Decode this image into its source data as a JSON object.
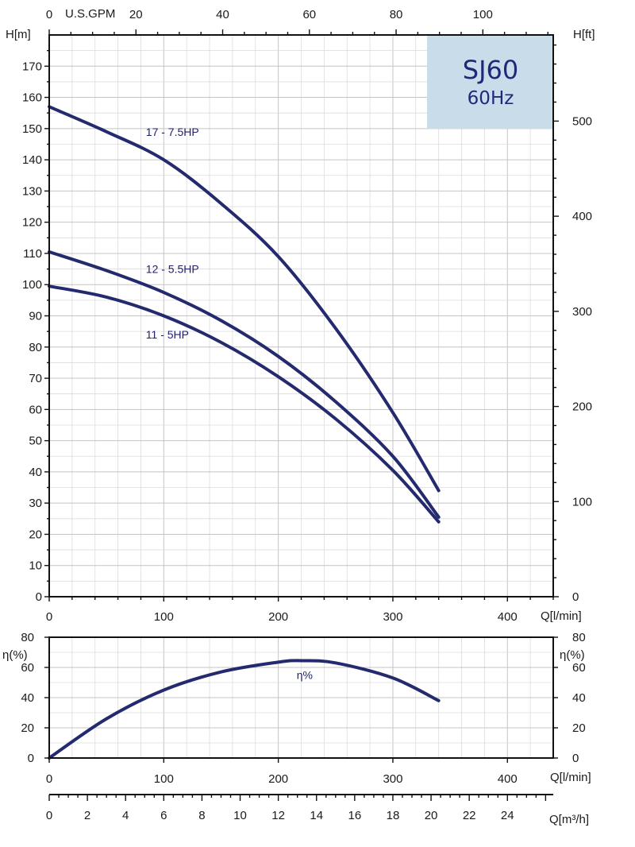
{
  "chart_data": [
    {
      "id": "head",
      "type": "line",
      "title": "SJ60 60Hz",
      "badge": {
        "model": "SJ60",
        "frequency": "60Hz",
        "color": "#c9dcea"
      },
      "curve_color": "#242a6e",
      "xlabel": "Q[l/min]",
      "ylabel_left": "H[m]",
      "ylabel_right": "H[ft]",
      "xlabel_top": "U.S.GPM",
      "xlim": [
        0,
        440
      ],
      "ylim": [
        0,
        180
      ],
      "x_ticks": [
        "0",
        "100",
        "200",
        "300",
        "400"
      ],
      "x_tick_values": [
        0,
        100,
        200,
        300,
        400
      ],
      "y_ticks": [
        "0",
        "10",
        "20",
        "30",
        "40",
        "50",
        "60",
        "70",
        "80",
        "90",
        "100",
        "110",
        "120",
        "130",
        "140",
        "150",
        "160",
        "170"
      ],
      "y_tick_values": [
        0,
        10,
        20,
        30,
        40,
        50,
        60,
        70,
        80,
        90,
        100,
        110,
        120,
        130,
        140,
        150,
        160,
        170
      ],
      "ft_ticks": [
        "0",
        "100",
        "200",
        "300",
        "400",
        "500"
      ],
      "ft_tick_values": [
        0,
        100,
        200,
        300,
        400,
        500
      ],
      "gpm_ticks": [
        "0",
        "20",
        "40",
        "60",
        "80",
        "100"
      ],
      "gpm_tick_values": [
        0,
        20,
        40,
        60,
        80,
        100
      ],
      "series": [
        {
          "name": "17 - 7.5HP",
          "label_at": [
            65,
            149
          ],
          "x": [
            0,
            50,
            100,
            150,
            200,
            250,
            300,
            340
          ],
          "y": [
            157,
            149,
            140,
            126,
            109,
            86,
            59,
            34
          ]
        },
        {
          "name": "12 - 5.5HP",
          "label_at": [
            65,
            105
          ],
          "x": [
            0,
            50,
            100,
            150,
            200,
            250,
            300,
            340
          ],
          "y": [
            110.5,
            104.5,
            97.5,
            88.5,
            77,
            62.5,
            45,
            25.5
          ]
        },
        {
          "name": "11 - 5HP",
          "label_at": [
            65,
            84
          ],
          "x": [
            0,
            50,
            100,
            150,
            200,
            250,
            300,
            340
          ],
          "y": [
            99.5,
            96,
            90,
            81.5,
            70.5,
            57,
            40.5,
            24
          ]
        }
      ]
    },
    {
      "id": "efficiency",
      "type": "line",
      "xlabel": "Q[l/min]",
      "ylabel": "η(%)",
      "ylabel_right": "η(%)",
      "xlim": [
        0,
        440
      ],
      "ylim": [
        0,
        80
      ],
      "x_ticks": [
        "0",
        "100",
        "200",
        "300",
        "400"
      ],
      "x_tick_values": [
        0,
        100,
        200,
        300,
        400
      ],
      "y_ticks": [
        "0",
        "20",
        "40",
        "60",
        "80"
      ],
      "y_tick_values": [
        0,
        20,
        40,
        60,
        80
      ],
      "series": [
        {
          "name": "η%",
          "label_at": [
            216,
            55
          ],
          "x": [
            0,
            50,
            100,
            150,
            200,
            220,
            250,
            300,
            340
          ],
          "y": [
            0,
            26,
            45,
            57,
            63.5,
            64.5,
            63,
            53,
            38
          ]
        }
      ]
    },
    {
      "id": "flow-m3h",
      "type": "axis",
      "xlabel": "Q[m³/h]",
      "xlim": [
        0,
        26.4
      ],
      "x_ticks": [
        "0",
        "2",
        "4",
        "6",
        "8",
        "10",
        "12",
        "14",
        "16",
        "18",
        "20",
        "22",
        "24"
      ],
      "x_tick_values": [
        0,
        2,
        4,
        6,
        8,
        10,
        12,
        14,
        16,
        18,
        20,
        22,
        24
      ]
    }
  ]
}
